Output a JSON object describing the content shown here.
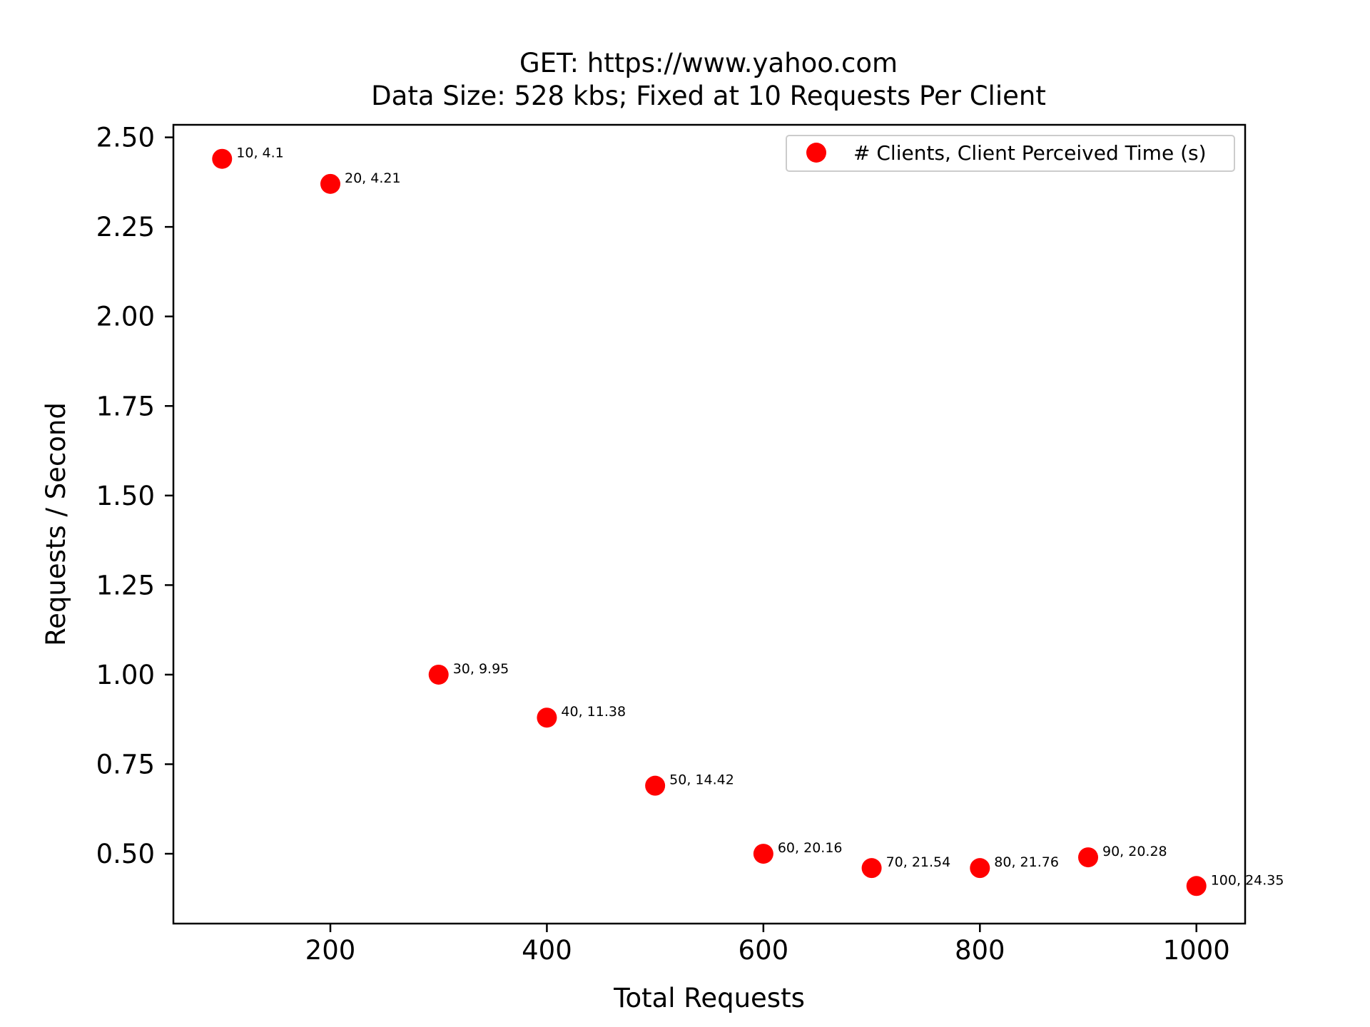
{
  "chart_data": {
    "type": "scatter",
    "title": "GET: https://www.yahoo.com",
    "subtitle": "Data Size: 528 kbs; Fixed at 10 Requests Per Client",
    "xlabel": "Total Requests",
    "ylabel": "Requests / Second",
    "xlim": [
      55,
      1045
    ],
    "ylim": [
      0.305,
      2.535
    ],
    "xticks": [
      200,
      400,
      600,
      800,
      1000
    ],
    "yticks": [
      0.5,
      0.75,
      1.0,
      1.25,
      1.5,
      1.75,
      2.0,
      2.25,
      2.5
    ],
    "xtick_labels": [
      "200",
      "400",
      "600",
      "800",
      "1000"
    ],
    "ytick_labels": [
      "0.50",
      "0.75",
      "1.00",
      "1.25",
      "1.50",
      "1.75",
      "2.00",
      "2.25",
      "2.50"
    ],
    "grid": false,
    "legend": {
      "position": "top-right",
      "entries": [
        "# Clients, Client Perceived Time (s)"
      ]
    },
    "series": [
      {
        "name": "# Clients, Client Perceived Time (s)",
        "color": "#ff0000",
        "points": [
          {
            "x": 100,
            "y": 2.44,
            "label": "10, 4.1"
          },
          {
            "x": 200,
            "y": 2.37,
            "label": "20, 4.21"
          },
          {
            "x": 300,
            "y": 1.0,
            "label": "30, 9.95"
          },
          {
            "x": 400,
            "y": 0.88,
            "label": "40, 11.38"
          },
          {
            "x": 500,
            "y": 0.69,
            "label": "50, 14.42"
          },
          {
            "x": 600,
            "y": 0.5,
            "label": "60, 20.16"
          },
          {
            "x": 700,
            "y": 0.46,
            "label": "70, 21.54"
          },
          {
            "x": 800,
            "y": 0.46,
            "label": "80, 21.76"
          },
          {
            "x": 900,
            "y": 0.49,
            "label": "90, 20.28"
          },
          {
            "x": 1000,
            "y": 0.41,
            "label": "100, 24.35"
          }
        ]
      }
    ]
  }
}
